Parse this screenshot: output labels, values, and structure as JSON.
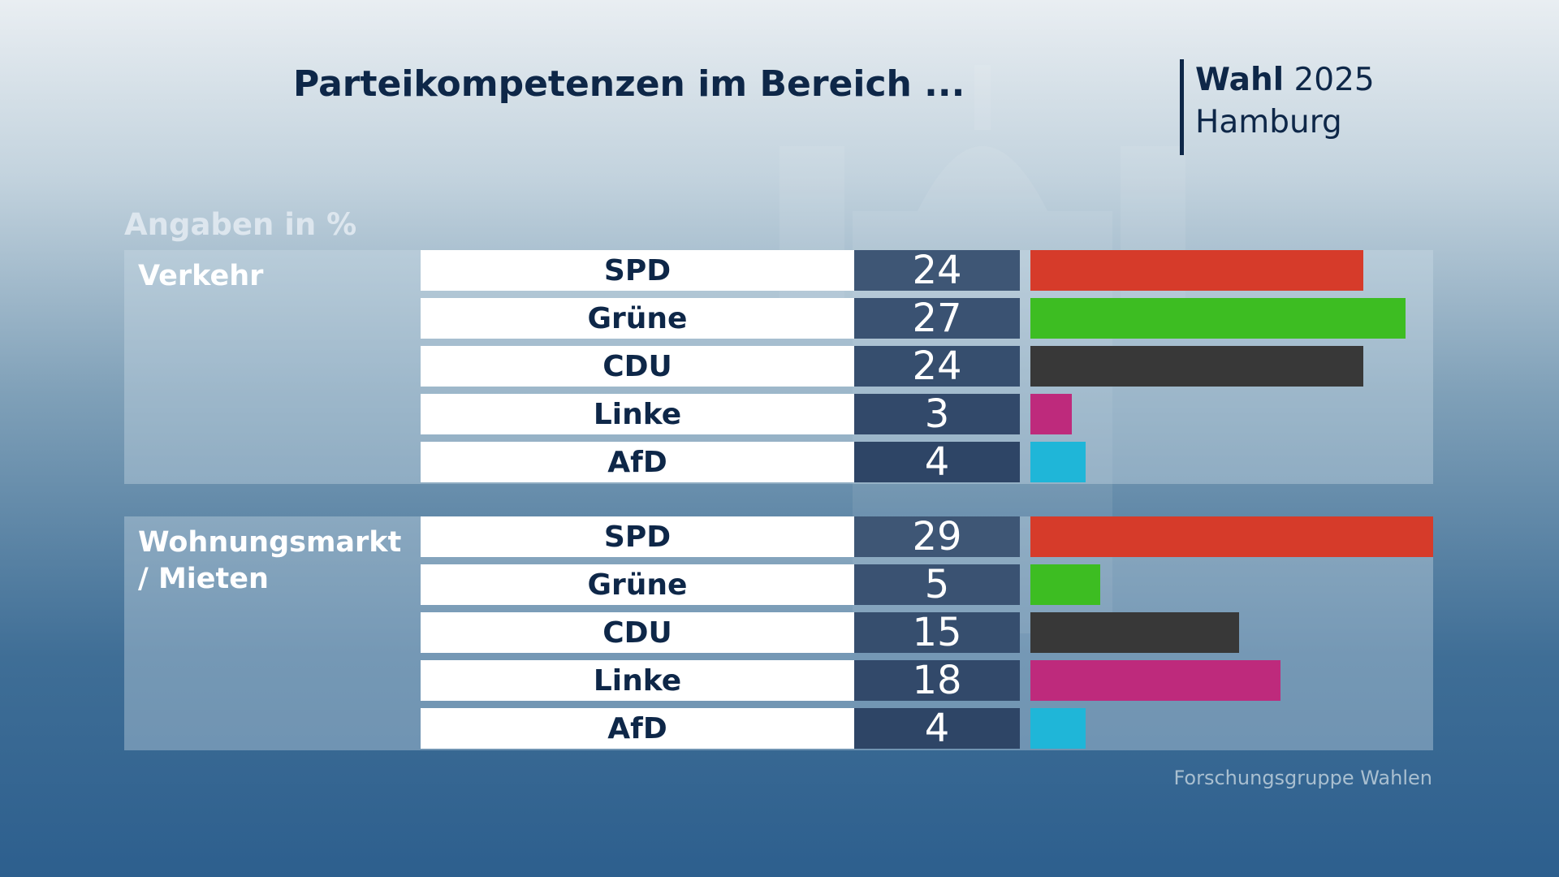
{
  "header": {
    "title": "Parteikompetenzen im Bereich ...",
    "brand_bold": "Wahl",
    "brand_year": "2025",
    "brand_region": "Hamburg"
  },
  "unit_label": "Angaben in %",
  "source": "Forschungsgruppe Wahlen",
  "colors": {
    "SPD": "#d63b2a",
    "Grüne": "#3dbd22",
    "CDU": "#383838",
    "Linke": "#be2a7c",
    "AfD": "#1fb6d8"
  },
  "chart_data": {
    "type": "bar",
    "orientation": "horizontal",
    "title": "Parteikompetenzen im Bereich ...",
    "unit": "Angaben in %",
    "xlim": [
      0,
      29
    ],
    "groups": [
      {
        "name": "Verkehr",
        "categories": [
          "SPD",
          "Grüne",
          "CDU",
          "Linke",
          "AfD"
        ],
        "values": [
          24,
          27,
          24,
          3,
          4
        ]
      },
      {
        "name": "Wohnungsmarkt / Mieten",
        "categories": [
          "SPD",
          "Grüne",
          "CDU",
          "Linke",
          "AfD"
        ],
        "values": [
          29,
          5,
          15,
          18,
          4
        ]
      }
    ]
  }
}
